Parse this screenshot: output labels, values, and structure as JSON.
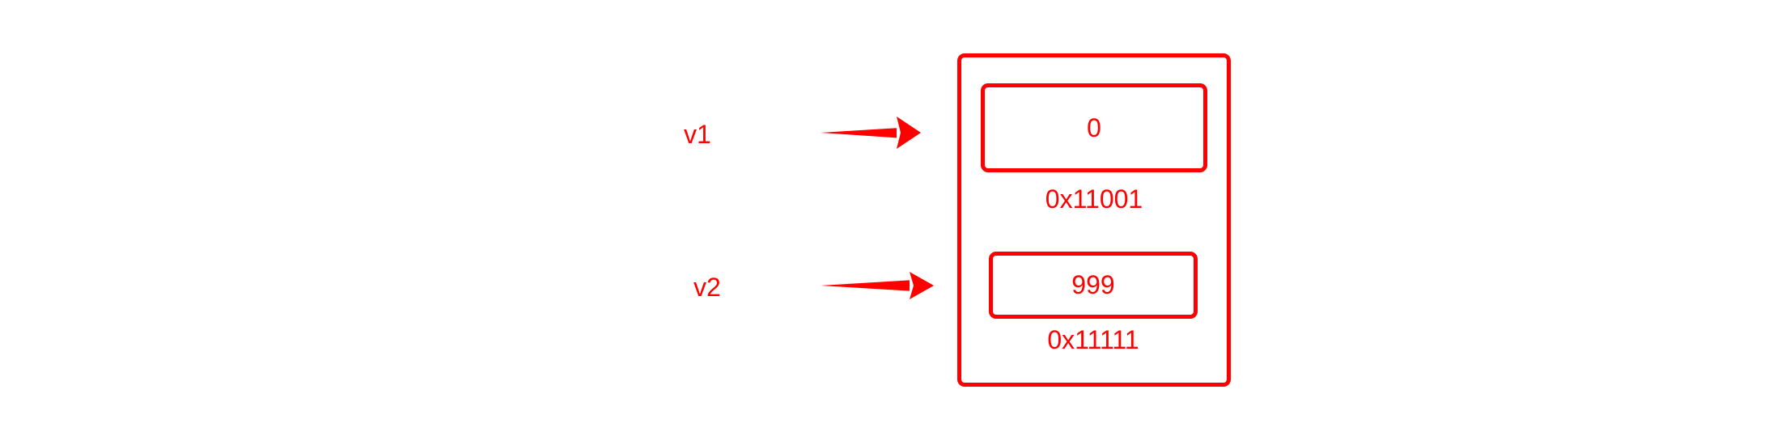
{
  "diagram": {
    "accent_color": "#ff0000",
    "variables": [
      {
        "name": "v1"
      },
      {
        "name": "v2"
      }
    ],
    "memory_cells": [
      {
        "value": "0",
        "address": "0x11001"
      },
      {
        "value": "999",
        "address": "0x11111"
      }
    ],
    "edges": [
      {
        "from": "v1",
        "to": "0x11001"
      },
      {
        "from": "v2",
        "to": "0x11111"
      }
    ]
  }
}
